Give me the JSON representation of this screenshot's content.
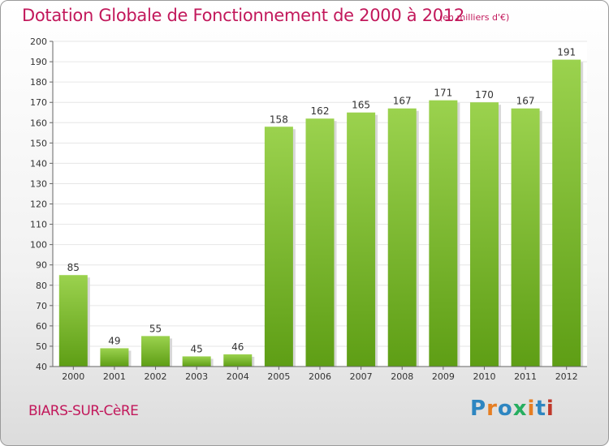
{
  "title": "Dotation Globale de Fonctionnement de 2000 à 2012",
  "subtitle": "(en milliers d'€)",
  "place": "BIARS-SUR-CèRE",
  "brand": {
    "text": "Proxiti",
    "letter_colors": [
      "#2e86c1",
      "#e67e22",
      "#2e86c1",
      "#27ae60",
      "#e67e22",
      "#2e86c1",
      "#c0392b"
    ]
  },
  "colors": {
    "title": "#c2185b",
    "bar_light": "#9bd24e",
    "bar_dark": "#5e9e15",
    "grid": "#e6e6e6",
    "axis_text": "#333333"
  },
  "chart_data": {
    "type": "bar",
    "title": "Dotation Globale de Fonctionnement de 2000 à 2012",
    "subtitle": "(en milliers d'€)",
    "categories": [
      "2000",
      "2001",
      "2002",
      "2003",
      "2004",
      "2005",
      "2006",
      "2007",
      "2008",
      "2009",
      "2010",
      "2011",
      "2012"
    ],
    "values": [
      85,
      49,
      55,
      45,
      46,
      158,
      162,
      165,
      167,
      171,
      170,
      167,
      191
    ],
    "ylim": [
      40,
      200
    ],
    "yticks": [
      40,
      50,
      60,
      70,
      80,
      90,
      100,
      110,
      120,
      130,
      140,
      150,
      160,
      170,
      180,
      190,
      200
    ],
    "grid": true,
    "data_labels": true
  }
}
